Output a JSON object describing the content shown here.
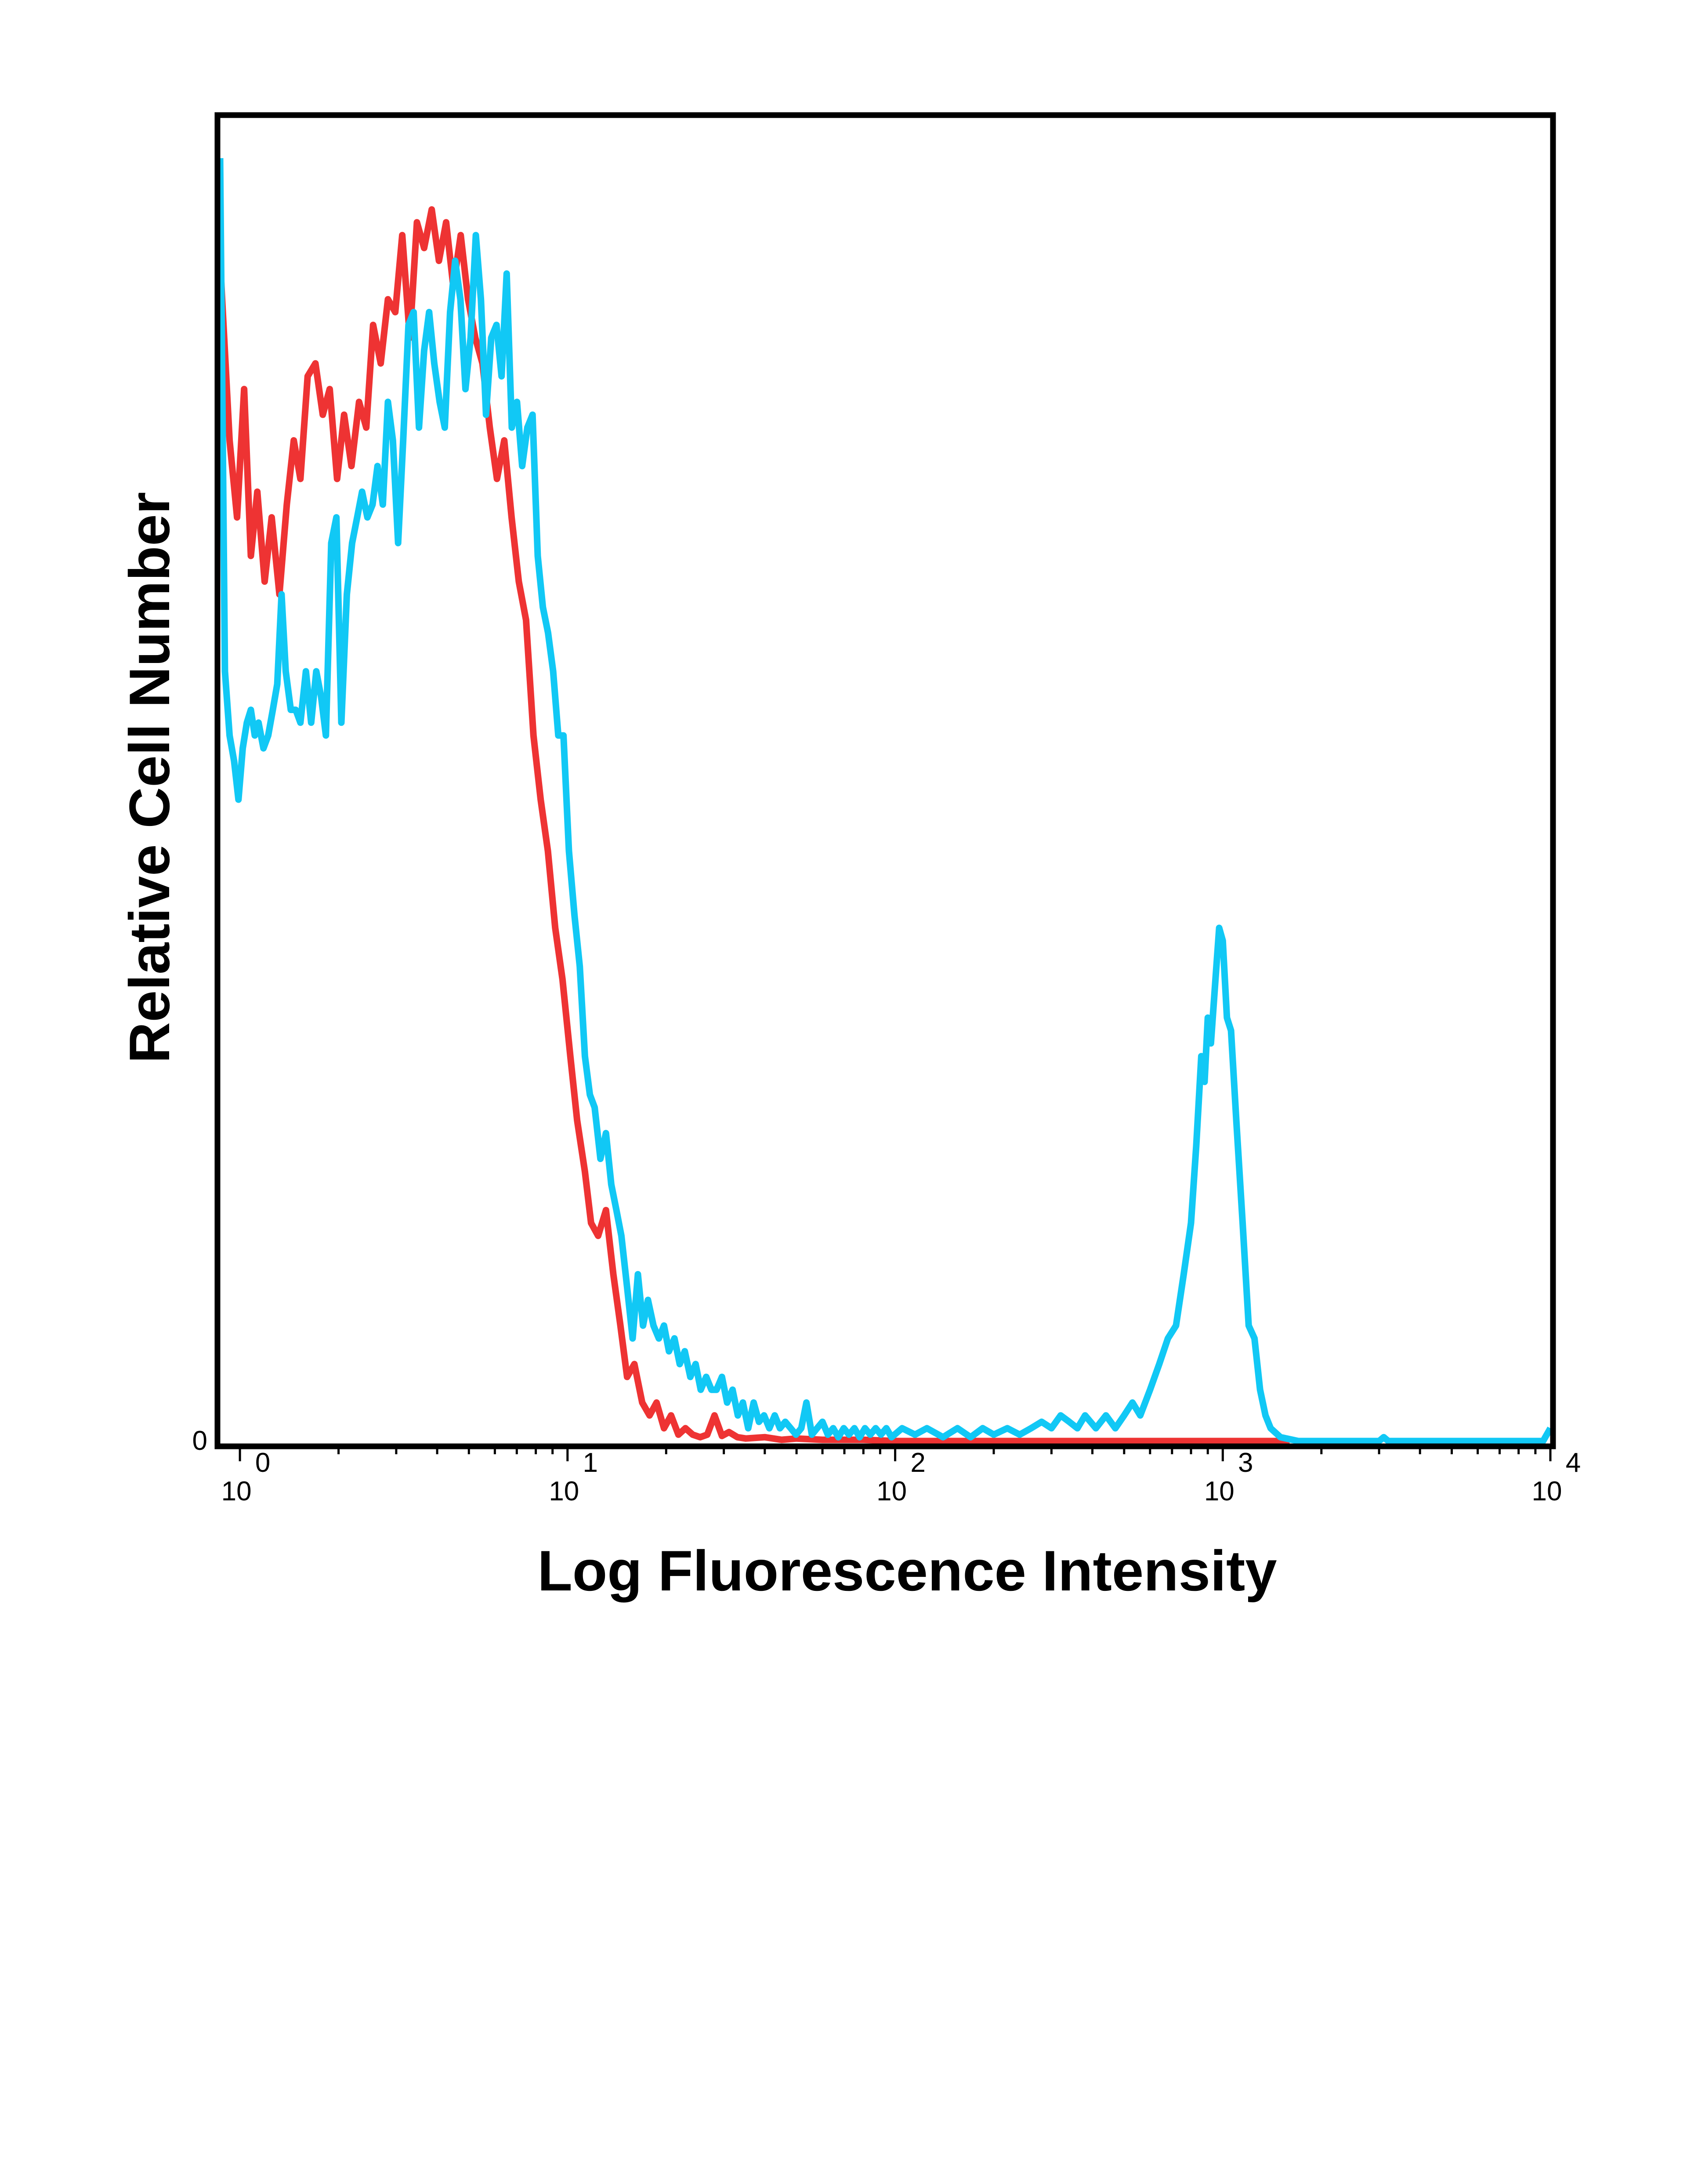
{
  "chart_data": {
    "type": "line",
    "title": "",
    "xlabel": "Log Fluorescence Intensity",
    "ylabel": "Relative Cell Number",
    "x_scale": "log",
    "xlim": [
      0.87,
      10000
    ],
    "ylim": [
      0,
      100
    ],
    "y_tick_label": "0",
    "x_ticks": [
      {
        "value": 1,
        "base": "10",
        "exp": "0"
      },
      {
        "value": 10,
        "base": "10",
        "exp": "1"
      },
      {
        "value": 100,
        "base": "10",
        "exp": "2"
      },
      {
        "value": 1000,
        "base": "10",
        "exp": "3"
      },
      {
        "value": 10000,
        "base": "10",
        "exp": "4"
      }
    ],
    "grid": false,
    "legend": "none",
    "series": [
      {
        "color": "#ee3333",
        "points": [
          [
            0.87,
            92
          ],
          [
            0.93,
            78
          ],
          [
            0.98,
            72
          ],
          [
            1.03,
            82
          ],
          [
            1.08,
            69
          ],
          [
            1.13,
            74
          ],
          [
            1.19,
            67
          ],
          [
            1.25,
            72
          ],
          [
            1.32,
            66
          ],
          [
            1.39,
            73
          ],
          [
            1.46,
            78
          ],
          [
            1.53,
            75
          ],
          [
            1.61,
            83
          ],
          [
            1.7,
            84
          ],
          [
            1.79,
            80
          ],
          [
            1.88,
            82
          ],
          [
            1.98,
            75
          ],
          [
            2.08,
            80
          ],
          [
            2.19,
            76
          ],
          [
            2.31,
            81
          ],
          [
            2.43,
            79
          ],
          [
            2.55,
            87
          ],
          [
            2.69,
            84
          ],
          [
            2.83,
            89
          ],
          [
            2.98,
            88
          ],
          [
            3.13,
            94
          ],
          [
            3.3,
            86
          ],
          [
            3.47,
            95
          ],
          [
            3.65,
            93
          ],
          [
            3.85,
            96
          ],
          [
            4.05,
            92
          ],
          [
            4.26,
            95
          ],
          [
            4.48,
            90
          ],
          [
            4.72,
            94
          ],
          [
            4.97,
            89
          ],
          [
            5.23,
            86
          ],
          [
            5.5,
            84
          ],
          [
            5.79,
            79
          ],
          [
            6.09,
            75
          ],
          [
            6.41,
            78
          ],
          [
            6.75,
            72
          ],
          [
            7.1,
            67
          ],
          [
            7.47,
            64
          ],
          [
            7.87,
            55
          ],
          [
            8.28,
            50
          ],
          [
            8.71,
            46
          ],
          [
            9.17,
            40
          ],
          [
            9.65,
            36
          ],
          [
            10.2,
            30
          ],
          [
            10.7,
            25
          ],
          [
            11.3,
            21
          ],
          [
            11.8,
            17
          ],
          [
            12.4,
            16
          ],
          [
            13.1,
            18
          ],
          [
            13.8,
            13
          ],
          [
            14.5,
            9
          ],
          [
            15.2,
            5
          ],
          [
            16.0,
            6
          ],
          [
            16.9,
            3
          ],
          [
            17.8,
            2
          ],
          [
            18.7,
            3
          ],
          [
            19.7,
            1
          ],
          [
            20.7,
            2
          ],
          [
            21.8,
            0.5
          ],
          [
            22.9,
            1
          ],
          [
            24.1,
            0.5
          ],
          [
            25.4,
            0.3
          ],
          [
            26.7,
            0.5
          ],
          [
            28.1,
            2
          ],
          [
            29.6,
            0.4
          ],
          [
            31.1,
            0.7
          ],
          [
            33.0,
            0.3
          ],
          [
            35.0,
            0.2
          ],
          [
            40.0,
            0.3
          ],
          [
            45.0,
            0.1
          ],
          [
            50.0,
            0.2
          ],
          [
            60.0,
            0.1
          ],
          [
            80.0,
            0.1
          ],
          [
            100,
            0
          ],
          [
            200,
            0
          ],
          [
            500,
            0
          ],
          [
            1000,
            0
          ],
          [
            1600,
            0
          ]
        ]
      },
      {
        "color": "#11c8f5",
        "points": [
          [
            0.87,
            100
          ],
          [
            0.9,
            60
          ],
          [
            0.93,
            55
          ],
          [
            0.96,
            53
          ],
          [
            0.99,
            50
          ],
          [
            1.02,
            54
          ],
          [
            1.05,
            56
          ],
          [
            1.08,
            57
          ],
          [
            1.11,
            55
          ],
          [
            1.14,
            56
          ],
          [
            1.18,
            54
          ],
          [
            1.22,
            55
          ],
          [
            1.26,
            57
          ],
          [
            1.3,
            59
          ],
          [
            1.34,
            66
          ],
          [
            1.38,
            60
          ],
          [
            1.43,
            57
          ],
          [
            1.48,
            57
          ],
          [
            1.53,
            56
          ],
          [
            1.59,
            60
          ],
          [
            1.65,
            56
          ],
          [
            1.71,
            60
          ],
          [
            1.77,
            58
          ],
          [
            1.83,
            55
          ],
          [
            1.9,
            70
          ],
          [
            1.97,
            72
          ],
          [
            2.04,
            56
          ],
          [
            2.12,
            66
          ],
          [
            2.2,
            70
          ],
          [
            2.28,
            72
          ],
          [
            2.36,
            74
          ],
          [
            2.45,
            72
          ],
          [
            2.54,
            73
          ],
          [
            2.63,
            76
          ],
          [
            2.73,
            73
          ],
          [
            2.83,
            81
          ],
          [
            2.93,
            78
          ],
          [
            3.04,
            70
          ],
          [
            3.15,
            78
          ],
          [
            3.27,
            87
          ],
          [
            3.39,
            88
          ],
          [
            3.52,
            79
          ],
          [
            3.65,
            85
          ],
          [
            3.78,
            88
          ],
          [
            3.92,
            84
          ],
          [
            4.07,
            81
          ],
          [
            4.22,
            79
          ],
          [
            4.38,
            88
          ],
          [
            4.54,
            92
          ],
          [
            4.71,
            89
          ],
          [
            4.88,
            82
          ],
          [
            5.06,
            86
          ],
          [
            5.25,
            94
          ],
          [
            5.44,
            89
          ],
          [
            5.64,
            80
          ],
          [
            5.85,
            86
          ],
          [
            6.07,
            87
          ],
          [
            6.29,
            83
          ],
          [
            6.52,
            91
          ],
          [
            6.76,
            79
          ],
          [
            7.01,
            81
          ],
          [
            7.27,
            76
          ],
          [
            7.54,
            79
          ],
          [
            7.82,
            80
          ],
          [
            8.11,
            69
          ],
          [
            8.41,
            65
          ],
          [
            8.72,
            63
          ],
          [
            9.04,
            60
          ],
          [
            9.37,
            55
          ],
          [
            9.72,
            55
          ],
          [
            10.1,
            46
          ],
          [
            10.5,
            41
          ],
          [
            10.9,
            37
          ],
          [
            11.3,
            30
          ],
          [
            11.7,
            27
          ],
          [
            12.1,
            26
          ],
          [
            12.6,
            22
          ],
          [
            13.1,
            24
          ],
          [
            13.6,
            20
          ],
          [
            14.1,
            18
          ],
          [
            14.6,
            16
          ],
          [
            15.2,
            12
          ],
          [
            15.8,
            8
          ],
          [
            16.4,
            13
          ],
          [
            17.0,
            9
          ],
          [
            17.6,
            11
          ],
          [
            18.3,
            9
          ],
          [
            19.0,
            8
          ],
          [
            19.7,
            9
          ],
          [
            20.4,
            7
          ],
          [
            21.2,
            8
          ],
          [
            22.0,
            6
          ],
          [
            22.8,
            7
          ],
          [
            23.7,
            5
          ],
          [
            24.6,
            6
          ],
          [
            25.5,
            4
          ],
          [
            26.5,
            5
          ],
          [
            27.5,
            4
          ],
          [
            28.5,
            4
          ],
          [
            29.6,
            5
          ],
          [
            30.7,
            3
          ],
          [
            31.9,
            4
          ],
          [
            33.1,
            2
          ],
          [
            34.3,
            3
          ],
          [
            35.6,
            1
          ],
          [
            37.0,
            3
          ],
          [
            38.4,
            1.5
          ],
          [
            39.8,
            2
          ],
          [
            41.3,
            1
          ],
          [
            42.9,
            2
          ],
          [
            44.5,
            1
          ],
          [
            46.2,
            1.5
          ],
          [
            48.0,
            1
          ],
          [
            49.8,
            0.5
          ],
          [
            51.7,
            1
          ],
          [
            53.6,
            3
          ],
          [
            55.7,
            0.5
          ],
          [
            57.8,
            1
          ],
          [
            60.0,
            1.5
          ],
          [
            62.3,
            0.5
          ],
          [
            64.7,
            1
          ],
          [
            67.1,
            0.3
          ],
          [
            69.7,
            1
          ],
          [
            72.3,
            0.5
          ],
          [
            75.1,
            1
          ],
          [
            77.9,
            0.3
          ],
          [
            80.9,
            1
          ],
          [
            84.0,
            0.5
          ],
          [
            87.2,
            1
          ],
          [
            90.5,
            0.5
          ],
          [
            94.0,
            1
          ],
          [
            97.5,
            0.3
          ],
          [
            105,
            1
          ],
          [
            115,
            0.5
          ],
          [
            125,
            1
          ],
          [
            140,
            0.3
          ],
          [
            155,
            1
          ],
          [
            170,
            0.3
          ],
          [
            185,
            1
          ],
          [
            200,
            0.5
          ],
          [
            220,
            1
          ],
          [
            240,
            0.5
          ],
          [
            260,
            1
          ],
          [
            280,
            1.5
          ],
          [
            300,
            1
          ],
          [
            320,
            2
          ],
          [
            340,
            1.5
          ],
          [
            360,
            1
          ],
          [
            380,
            2
          ],
          [
            410,
            1
          ],
          [
            440,
            2
          ],
          [
            470,
            1
          ],
          [
            500,
            2
          ],
          [
            530,
            3
          ],
          [
            560,
            2
          ],
          [
            600,
            4
          ],
          [
            640,
            6
          ],
          [
            680,
            8
          ],
          [
            720,
            9
          ],
          [
            760,
            13
          ],
          [
            800,
            17
          ],
          [
            830,
            23
          ],
          [
            860,
            30
          ],
          [
            880,
            28
          ],
          [
            900,
            33
          ],
          [
            920,
            31
          ],
          [
            950,
            36
          ],
          [
            975,
            40
          ],
          [
            1000,
            39
          ],
          [
            1030,
            33
          ],
          [
            1060,
            32
          ],
          [
            1100,
            25
          ],
          [
            1150,
            17
          ],
          [
            1200,
            9
          ],
          [
            1250,
            8
          ],
          [
            1300,
            4
          ],
          [
            1350,
            2
          ],
          [
            1400,
            1
          ],
          [
            1500,
            0.3
          ],
          [
            1700,
            0
          ],
          [
            3000,
            0
          ],
          [
            3100,
            0.3
          ],
          [
            3200,
            0
          ],
          [
            9500,
            0
          ],
          [
            10000,
            1
          ]
        ]
      }
    ]
  }
}
